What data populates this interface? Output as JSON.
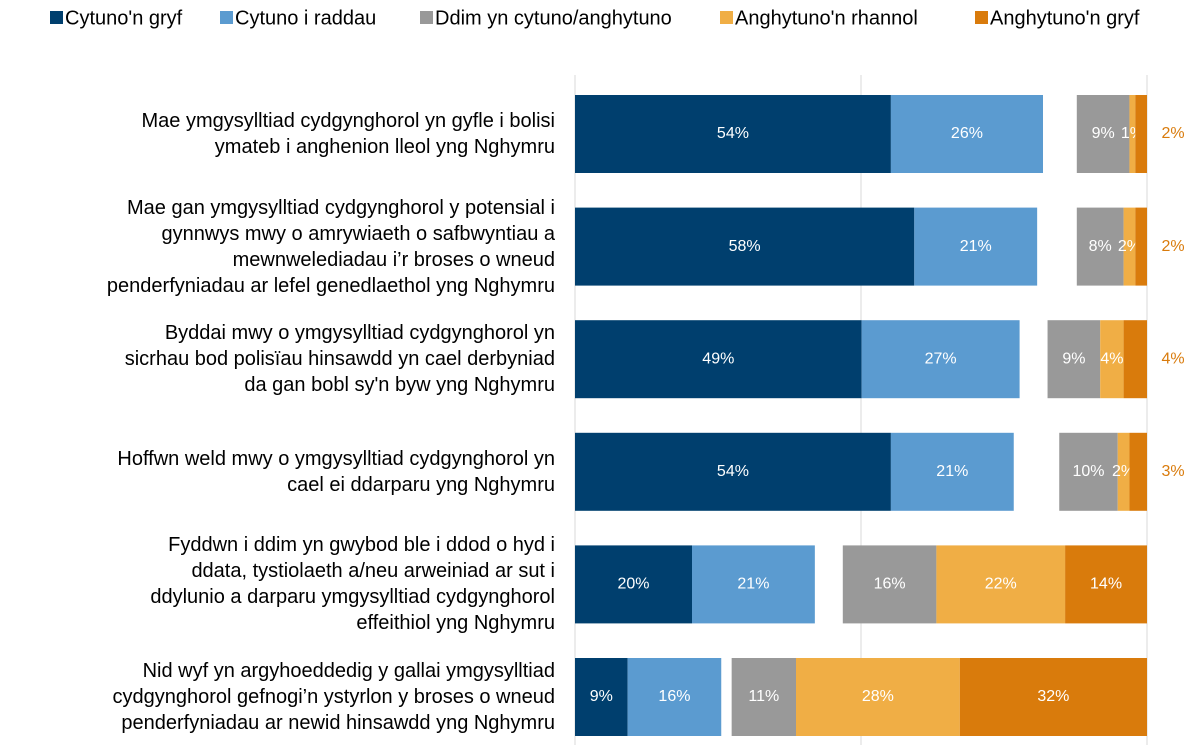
{
  "chart_data": {
    "type": "diverging-bar",
    "categories": [
      "Mae ymgysylltiad cydgynghorol yn gyfle i bolisi\nymateb i anghenion lleol yng Nghymru",
      "Mae gan ymgysylltiad cydgynghorol y potensial i\ngynnwys mwy o amrywiaeth o safbwyntiau a\nmewnwelediadau i’r broses o wneud\npenderfyniadau ar lefel genedlaethol yng Nghymru",
      "Byddai mwy o ymgysylltiad cydgynghorol yn\nsicrhau bod polisïau hinsawdd yn cael derbyniad\nda gan bobl sy'n byw yng Nghymru",
      "Hoffwn weld mwy o ymgysylltiad cydgynghorol yn\ncael ei ddarparu yng Nghymru",
      "Fyddwn i ddim yn gwybod ble i ddod o hyd i\nddata, tystiolaeth a/neu arweiniad ar sut i\nddylunio a darparu ymgysylltiad cydgynghorol\neffeithiol yng Nghymru",
      "Nid wyf yn argyhoeddedig y gallai ymgysylltiad\ncydgynghorol gefnogi’n ystyrlon y broses o wneud\npenderfyniadau ar newid hinsawdd yng Nghymru"
    ],
    "series": [
      {
        "name": "Cytuno'n gryf",
        "color": "#003f6e",
        "values": [
          54,
          58,
          49,
          54,
          20,
          9
        ],
        "value_labels": [
          "54%",
          "58%",
          "49%",
          "54%",
          "20%",
          "9%"
        ]
      },
      {
        "name": "Cytuno i raddau",
        "color": "#5b9bd0",
        "values": [
          26,
          21,
          27,
          21,
          21,
          16
        ],
        "value_labels": [
          "26%",
          "21%",
          "27%",
          "21%",
          "21%",
          "16%"
        ]
      },
      {
        "name": "Ddim yn cytuno/anghytuno",
        "color": "#999999",
        "values": [
          9,
          8,
          9,
          10,
          16,
          11
        ],
        "value_labels": [
          "9%",
          "8%",
          "9%",
          "10%",
          "16%",
          "11%"
        ]
      },
      {
        "name": "Anghytuno'n rhannol",
        "color": "#f0ae45",
        "values": [
          1,
          2,
          4,
          2,
          22,
          28
        ],
        "value_labels": [
          "1%",
          "2%",
          "4%",
          "2%",
          "22%",
          "28%"
        ]
      },
      {
        "name": "Anghytuno'n gryf",
        "color": "#d97b0c",
        "values": [
          2,
          2,
          4,
          3,
          14,
          32
        ],
        "value_labels": [
          "2%",
          "2%",
          "4%",
          "3%",
          "14%",
          "32%"
        ]
      }
    ]
  }
}
